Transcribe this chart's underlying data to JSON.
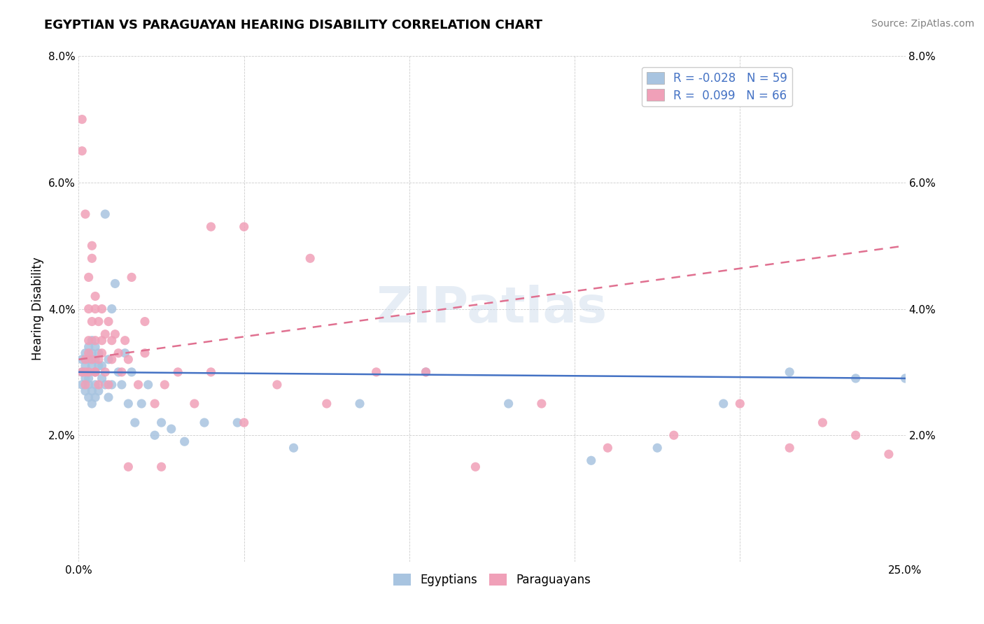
{
  "title": "EGYPTIAN VS PARAGUAYAN HEARING DISABILITY CORRELATION CHART",
  "source": "Source: ZipAtlas.com",
  "ylabel": "Hearing Disability",
  "xlim": [
    0.0,
    0.25
  ],
  "ylim": [
    0.0,
    0.08
  ],
  "xtick_vals": [
    0.0,
    0.05,
    0.1,
    0.15,
    0.2,
    0.25
  ],
  "xtick_labels": [
    "0.0%",
    "",
    "",
    "",
    "",
    "25.0%"
  ],
  "ytick_vals": [
    0.0,
    0.02,
    0.04,
    0.06,
    0.08
  ],
  "ytick_labels": [
    "",
    "2.0%",
    "4.0%",
    "6.0%",
    "8.0%"
  ],
  "R_egyptian": -0.028,
  "N_egyptian": 59,
  "R_paraguayan": 0.099,
  "N_paraguayan": 66,
  "egyptian_color": "#a8c4e0",
  "paraguayan_color": "#f0a0b8",
  "egyptian_line_color": "#4472c4",
  "paraguayan_line_color": "#e07090",
  "watermark": "ZIPatlas",
  "eg_line_start_y": 0.03,
  "eg_line_end_y": 0.029,
  "pa_line_start_y": 0.032,
  "pa_line_end_y": 0.05,
  "egyptian_x": [
    0.001,
    0.001,
    0.001,
    0.002,
    0.002,
    0.002,
    0.002,
    0.003,
    0.003,
    0.003,
    0.003,
    0.003,
    0.003,
    0.004,
    0.004,
    0.004,
    0.004,
    0.004,
    0.005,
    0.005,
    0.005,
    0.005,
    0.005,
    0.006,
    0.006,
    0.006,
    0.007,
    0.007,
    0.008,
    0.008,
    0.009,
    0.009,
    0.01,
    0.01,
    0.011,
    0.012,
    0.013,
    0.014,
    0.015,
    0.016,
    0.017,
    0.019,
    0.021,
    0.023,
    0.025,
    0.028,
    0.032,
    0.038,
    0.048,
    0.065,
    0.085,
    0.105,
    0.13,
    0.155,
    0.175,
    0.195,
    0.215,
    0.235,
    0.25
  ],
  "egyptian_y": [
    0.03,
    0.028,
    0.032,
    0.029,
    0.031,
    0.027,
    0.033,
    0.03,
    0.028,
    0.032,
    0.026,
    0.034,
    0.029,
    0.031,
    0.027,
    0.033,
    0.025,
    0.035,
    0.03,
    0.028,
    0.032,
    0.026,
    0.034,
    0.031,
    0.027,
    0.033,
    0.029,
    0.031,
    0.028,
    0.055,
    0.032,
    0.026,
    0.04,
    0.028,
    0.044,
    0.03,
    0.028,
    0.033,
    0.025,
    0.03,
    0.022,
    0.025,
    0.028,
    0.02,
    0.022,
    0.021,
    0.019,
    0.022,
    0.022,
    0.018,
    0.025,
    0.03,
    0.025,
    0.016,
    0.018,
    0.025,
    0.03,
    0.029,
    0.029
  ],
  "paraguayan_x": [
    0.001,
    0.001,
    0.001,
    0.002,
    0.002,
    0.002,
    0.002,
    0.003,
    0.003,
    0.003,
    0.003,
    0.003,
    0.004,
    0.004,
    0.004,
    0.004,
    0.005,
    0.005,
    0.005,
    0.005,
    0.005,
    0.006,
    0.006,
    0.006,
    0.007,
    0.007,
    0.007,
    0.008,
    0.008,
    0.009,
    0.009,
    0.01,
    0.01,
    0.011,
    0.012,
    0.013,
    0.014,
    0.015,
    0.016,
    0.018,
    0.02,
    0.023,
    0.026,
    0.03,
    0.035,
    0.04,
    0.05,
    0.06,
    0.075,
    0.09,
    0.105,
    0.12,
    0.14,
    0.16,
    0.18,
    0.2,
    0.215,
    0.225,
    0.235,
    0.245,
    0.05,
    0.07,
    0.04,
    0.02,
    0.025,
    0.015
  ],
  "paraguayan_y": [
    0.07,
    0.065,
    0.03,
    0.055,
    0.028,
    0.032,
    0.03,
    0.03,
    0.04,
    0.045,
    0.035,
    0.033,
    0.038,
    0.032,
    0.048,
    0.05,
    0.04,
    0.03,
    0.042,
    0.035,
    0.03,
    0.038,
    0.032,
    0.028,
    0.04,
    0.033,
    0.035,
    0.036,
    0.03,
    0.038,
    0.028,
    0.035,
    0.032,
    0.036,
    0.033,
    0.03,
    0.035,
    0.032,
    0.045,
    0.028,
    0.033,
    0.025,
    0.028,
    0.03,
    0.025,
    0.03,
    0.022,
    0.028,
    0.025,
    0.03,
    0.03,
    0.015,
    0.025,
    0.018,
    0.02,
    0.025,
    0.018,
    0.022,
    0.02,
    0.017,
    0.053,
    0.048,
    0.053,
    0.038,
    0.015,
    0.015
  ]
}
